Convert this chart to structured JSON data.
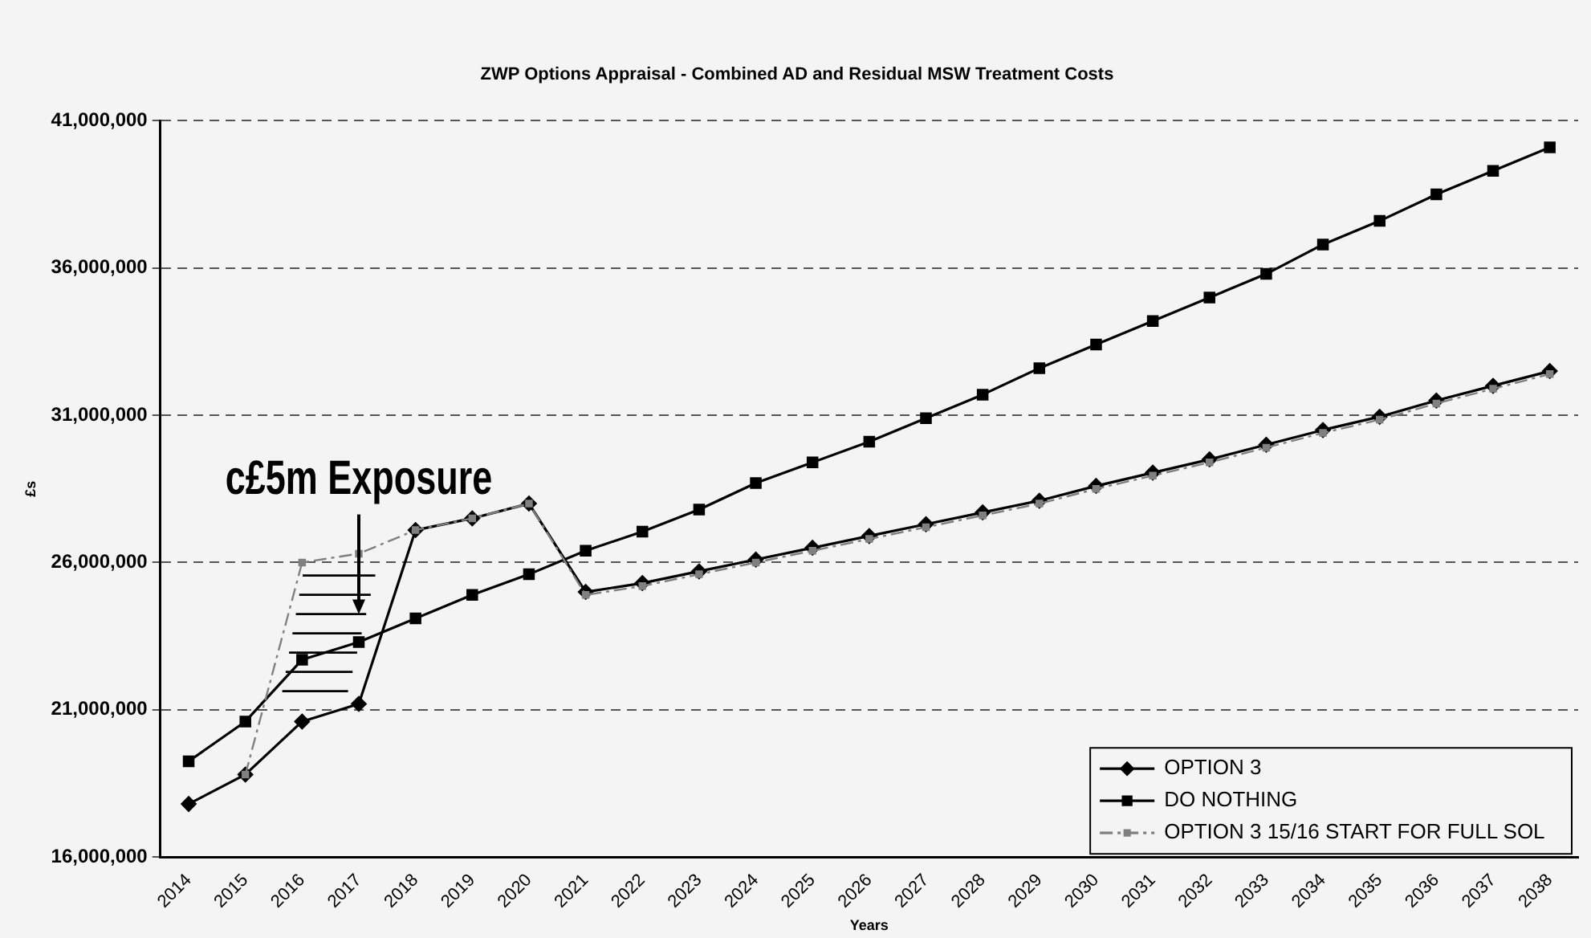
{
  "chart_data": {
    "type": "line",
    "title": "ZWP Options Appraisal - Combined AD and Residual MSW Treatment Costs",
    "xlabel": "Years",
    "ylabel": "£s",
    "categories": [
      "2014",
      "2015",
      "2016",
      "2017",
      "2018",
      "2019",
      "2020",
      "2021",
      "2022",
      "2023",
      "2024",
      "2025",
      "2026",
      "2027",
      "2028",
      "2029",
      "2030",
      "2031",
      "2032",
      "2033",
      "2034",
      "2035",
      "2036",
      "2037",
      "2038"
    ],
    "series": [
      {
        "name": "OPTION 3",
        "color": "#000000",
        "marker": "diamond",
        "values": [
          17800000,
          18800000,
          20600000,
          21200000,
          27100000,
          27500000,
          28000000,
          25000000,
          25300000,
          25700000,
          26100000,
          26500000,
          26900000,
          27300000,
          27700000,
          28100000,
          28600000,
          29050000,
          29500000,
          30000000,
          30500000,
          30950000,
          31500000,
          32000000,
          32500000
        ]
      },
      {
        "name": "DO NOTHING",
        "color": "#000000",
        "marker": "square",
        "values": [
          19250000,
          20600000,
          22700000,
          23300000,
          24100000,
          24900000,
          25600000,
          26400000,
          27050000,
          27800000,
          28700000,
          29400000,
          30100000,
          30900000,
          31700000,
          32600000,
          33400000,
          34200000,
          35000000,
          35800000,
          36800000,
          37600000,
          38500000,
          39300000,
          40100000
        ]
      },
      {
        "name": "OPTION 3 15/16 START FOR FULL SOL",
        "color": "#808080",
        "marker": "square",
        "line_style": "dashed",
        "values": [
          null,
          18800000,
          26000000,
          26300000,
          27100000,
          27500000,
          28000000,
          24900000,
          25200000,
          25600000,
          26000000,
          26400000,
          26800000,
          27200000,
          27600000,
          28000000,
          28500000,
          28950000,
          29400000,
          29900000,
          30400000,
          30850000,
          31400000,
          31900000,
          32400000
        ]
      }
    ],
    "ylim": [
      16000000,
      41000000
    ],
    "yticks": [
      {
        "value": 16000000,
        "label": "16,000,000"
      },
      {
        "value": 21000000,
        "label": "21,000,000"
      },
      {
        "value": 26000000,
        "label": "26,000,000"
      },
      {
        "value": 31000000,
        "label": "31,000,000"
      },
      {
        "value": 36000000,
        "label": "36,000,000"
      },
      {
        "value": 41000000,
        "label": "41,000,000"
      }
    ],
    "grid": "y",
    "legend": "bottom right",
    "annotations": [
      "c£5m Exposure"
    ]
  }
}
